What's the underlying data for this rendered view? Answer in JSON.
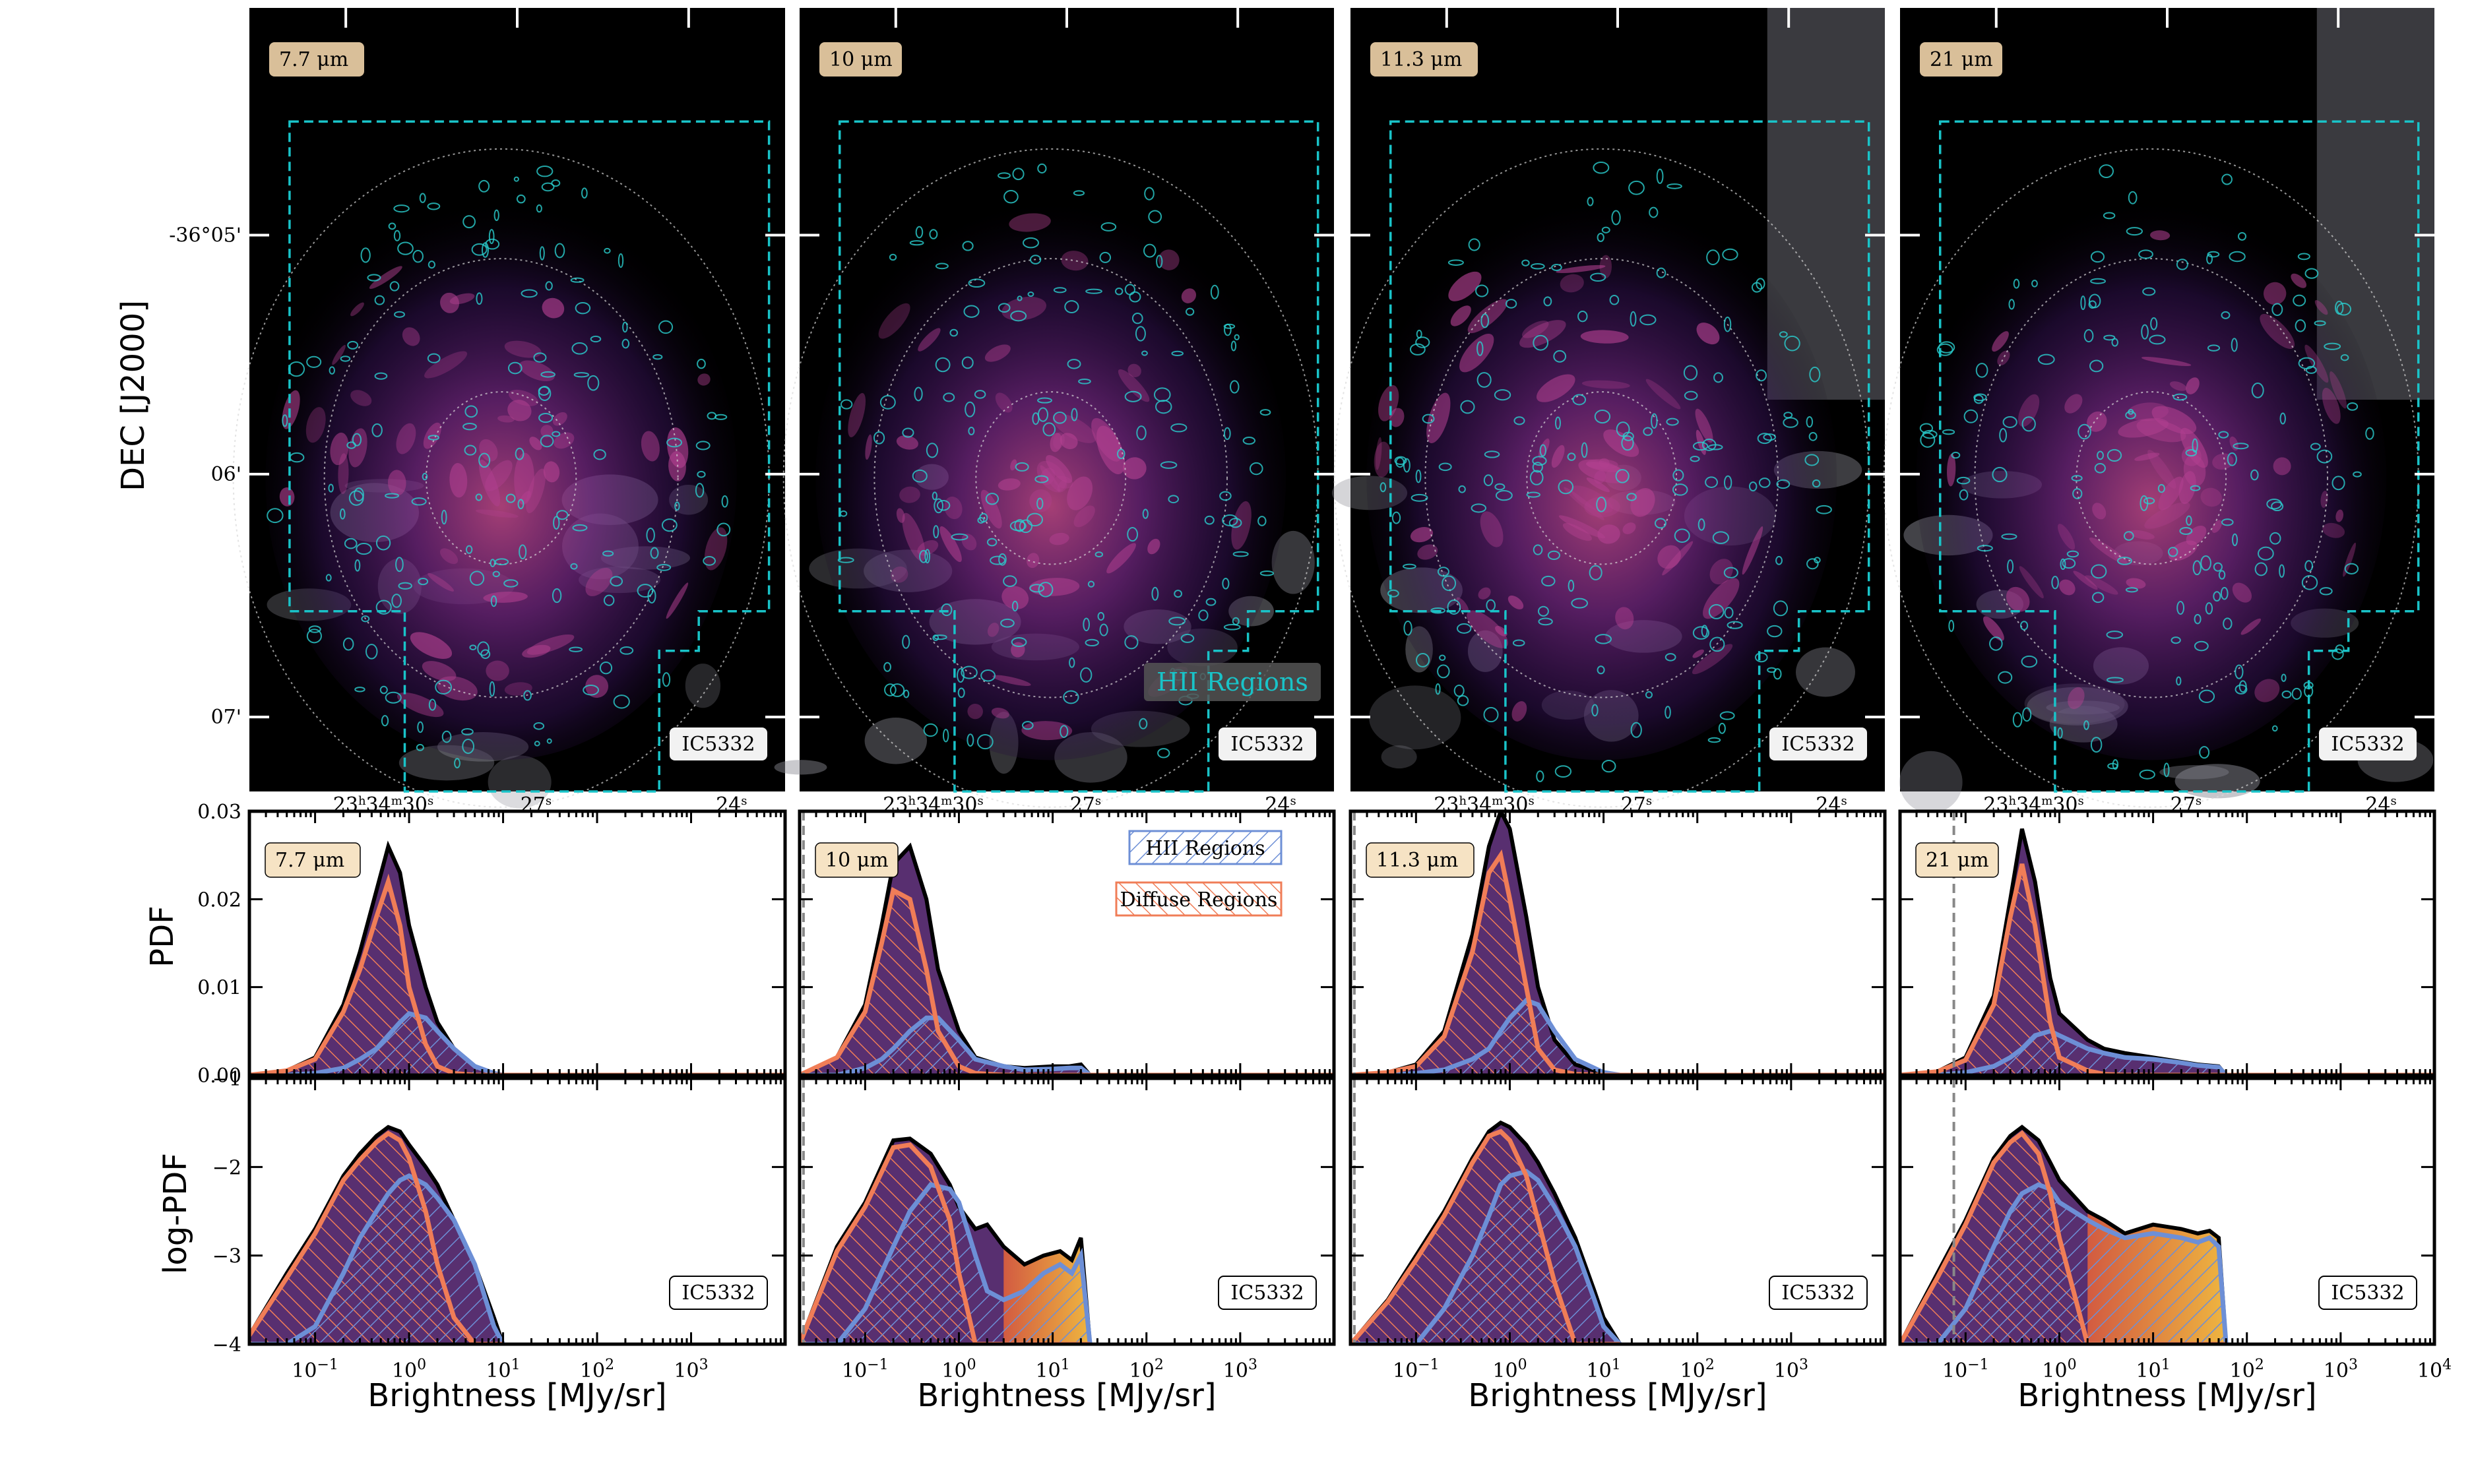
{
  "galaxy_label": "IC5332",
  "colors": {
    "total": "#3b0a57",
    "hii": "#6d8fd6",
    "diffuse": "#f07d57",
    "footprint": "#19c3c8",
    "hii_contour": "#2ad0d0",
    "band_box": "#d9bf99",
    "band_box_light": "#f6e3c4"
  },
  "image_row": {
    "ylabel": "DEC [J2000]",
    "dec_ticks": [
      "-36°05'",
      "06'",
      "07'"
    ],
    "ra_ticks": [
      {
        "h": "23",
        "m": "34",
        "s": "30",
        "unit_h": "h",
        "unit_m": "m",
        "unit_s": "s"
      },
      {
        "s": "27",
        "unit_s": "s"
      },
      {
        "s": "24",
        "unit_s": "s"
      }
    ],
    "hii_label": "HII Regions"
  },
  "legend": {
    "hii": "HII Regions",
    "diffuse": "Diffuse Regions"
  },
  "chart_data": [
    {
      "type": "area",
      "row": "pdf",
      "ylabel": "PDF",
      "xlabel": "",
      "xscale": "log",
      "xlim": [
        0.02,
        10000
      ],
      "ylim": [
        0,
        0.03
      ],
      "yticks": [
        "0.00",
        "0.01",
        "0.02",
        "0.03"
      ],
      "panels": [
        {
          "band": "7.7 μm",
          "band_num": "7.7",
          "band_unit": "μm",
          "x": [
            0.02,
            0.05,
            0.1,
            0.2,
            0.3,
            0.45,
            0.6,
            0.8,
            1.0,
            1.5,
            2,
            3,
            5,
            8,
            10,
            10000
          ],
          "series": [
            {
              "name": "total",
              "values": [
                0,
                0.0005,
                0.002,
                0.008,
                0.014,
                0.021,
                0.026,
                0.023,
                0.017,
                0.01,
                0.006,
                0.003,
                0.001,
                0.0002,
                0,
                0
              ]
            },
            {
              "name": "HII Regions",
              "values": [
                0,
                0,
                0.0002,
                0.0008,
                0.0018,
                0.003,
                0.0045,
                0.006,
                0.007,
                0.0065,
                0.005,
                0.003,
                0.001,
                0.0002,
                0,
                0
              ]
            },
            {
              "name": "Diffuse Regions",
              "values": [
                0,
                0.0005,
                0.0018,
                0.0072,
                0.012,
                0.018,
                0.022,
                0.017,
                0.01,
                0.0035,
                0.001,
                0.0002,
                0,
                0,
                0,
                0
              ]
            }
          ],
          "vline": null
        },
        {
          "band": "10 μm",
          "band_num": "10",
          "band_unit": "μm",
          "x": [
            0.02,
            0.05,
            0.1,
            0.15,
            0.2,
            0.3,
            0.45,
            0.6,
            1.0,
            1.5,
            3,
            5,
            10,
            15,
            20,
            25,
            10000
          ],
          "series": [
            {
              "name": "total",
              "values": [
                0,
                0.002,
                0.008,
                0.017,
                0.024,
                0.026,
                0.02,
                0.012,
                0.005,
                0.002,
                0.001,
                0.0008,
                0.001,
                0.001,
                0.0012,
                0,
                0
              ]
            },
            {
              "name": "HII Regions",
              "values": [
                0,
                0,
                0.0008,
                0.0018,
                0.003,
                0.005,
                0.0065,
                0.0065,
                0.004,
                0.0018,
                0.001,
                0.0006,
                0.0007,
                0.0008,
                0.0008,
                0,
                0
              ]
            },
            {
              "name": "Diffuse Regions",
              "values": [
                0,
                0.002,
                0.0072,
                0.015,
                0.021,
                0.02,
                0.012,
                0.005,
                0.001,
                0.0002,
                0,
                0,
                0,
                0,
                0,
                0,
                0
              ]
            }
          ],
          "vline": 0.022
        },
        {
          "band": "11.3 μm",
          "band_num": "11.3",
          "band_unit": "μm",
          "x": [
            0.02,
            0.05,
            0.1,
            0.2,
            0.4,
            0.6,
            0.8,
            1.0,
            1.5,
            2,
            3,
            5,
            10,
            15,
            10000
          ],
          "series": [
            {
              "name": "total",
              "values": [
                0,
                0.0003,
                0.0012,
                0.005,
                0.016,
                0.026,
                0.03,
                0.028,
                0.018,
                0.01,
                0.004,
                0.0012,
                0.0002,
                0,
                0
              ]
            },
            {
              "name": "HII Regions",
              "values": [
                0,
                0,
                0.0002,
                0.0006,
                0.0018,
                0.003,
                0.005,
                0.0065,
                0.0085,
                0.008,
                0.005,
                0.0018,
                0.0003,
                0,
                0
              ]
            },
            {
              "name": "Diffuse Regions",
              "values": [
                0,
                0.0003,
                0.001,
                0.0044,
                0.014,
                0.023,
                0.025,
                0.02,
                0.01,
                0.003,
                0.0006,
                0.0001,
                0,
                0,
                0
              ]
            }
          ],
          "vline": 0.022
        },
        {
          "band": "21 μm",
          "band_num": "21",
          "band_unit": "μm",
          "x": [
            0.02,
            0.05,
            0.1,
            0.2,
            0.3,
            0.4,
            0.55,
            0.8,
            1.0,
            2,
            3,
            5,
            10,
            20,
            30,
            50,
            60,
            10000
          ],
          "series": [
            {
              "name": "total",
              "values": [
                0,
                0.0004,
                0.002,
                0.009,
                0.02,
                0.028,
                0.022,
                0.011,
                0.007,
                0.004,
                0.003,
                0.0025,
                0.002,
                0.0015,
                0.0012,
                0.001,
                0,
                0
              ]
            },
            {
              "name": "HII Regions",
              "values": [
                0,
                0,
                0.0003,
                0.001,
                0.002,
                0.003,
                0.0045,
                0.005,
                0.0045,
                0.003,
                0.0025,
                0.002,
                0.0018,
                0.0014,
                0.0011,
                0.0009,
                0,
                0
              ]
            },
            {
              "name": "Diffuse Regions",
              "values": [
                0,
                0.0004,
                0.0017,
                0.008,
                0.018,
                0.024,
                0.017,
                0.006,
                0.002,
                0.0005,
                0.0001,
                0,
                0,
                0,
                0,
                0,
                0,
                0
              ]
            }
          ],
          "vline": 0.075
        }
      ]
    },
    {
      "type": "area",
      "row": "logpdf",
      "ylabel": "log-PDF",
      "xlabel": "Brightness [MJy/sr]",
      "xscale": "log",
      "xlim": [
        0.02,
        10000
      ],
      "ylim": [
        -4,
        -1
      ],
      "yticks": [
        "−4",
        "−3",
        "−2",
        "−1"
      ],
      "xticks": [
        {
          "base": "10",
          "exp": "−1",
          "value": 0.1
        },
        {
          "base": "10",
          "exp": "0",
          "value": 1
        },
        {
          "base": "10",
          "exp": "1",
          "value": 10
        },
        {
          "base": "10",
          "exp": "2",
          "value": 100
        },
        {
          "base": "10",
          "exp": "3",
          "value": 1000
        },
        {
          "base": "10",
          "exp": "4",
          "value": 10000
        }
      ],
      "panels": [
        {
          "band": "7.7 μm",
          "x": [
            0.02,
            0.05,
            0.1,
            0.2,
            0.3,
            0.45,
            0.6,
            0.8,
            1.0,
            1.5,
            2,
            3,
            5,
            8,
            10
          ],
          "series": [
            {
              "name": "total",
              "values": [
                -3.9,
                -3.2,
                -2.7,
                -2.1,
                -1.85,
                -1.65,
                -1.55,
                -1.6,
                -1.75,
                -2.0,
                -2.2,
                -2.6,
                -3.1,
                -3.7,
                -4.0
              ]
            },
            {
              "name": "HII Regions",
              "values": [
                -4.0,
                -4.0,
                -3.8,
                -3.2,
                -2.8,
                -2.5,
                -2.3,
                -2.15,
                -2.1,
                -2.2,
                -2.35,
                -2.6,
                -3.1,
                -3.8,
                -4.0
              ]
            },
            {
              "name": "Diffuse Regions",
              "values": [
                -3.9,
                -3.25,
                -2.75,
                -2.15,
                -1.92,
                -1.72,
                -1.62,
                -1.7,
                -1.9,
                -2.5,
                -3.1,
                -3.7,
                -4.0,
                -4.0,
                -4.0
              ]
            }
          ]
        },
        {
          "band": "10 μm",
          "x": [
            0.02,
            0.05,
            0.1,
            0.2,
            0.3,
            0.5,
            0.8,
            1.0,
            1.5,
            2,
            3,
            5,
            8,
            12,
            16,
            20,
            25
          ],
          "series": [
            {
              "name": "total",
              "values": [
                -4.0,
                -2.9,
                -2.4,
                -1.7,
                -1.68,
                -1.85,
                -2.2,
                -2.45,
                -2.7,
                -2.65,
                -2.9,
                -3.1,
                -3.0,
                -2.95,
                -3.05,
                -2.8,
                -4.0
              ]
            },
            {
              "name": "HII Regions",
              "values": [
                -4.0,
                -4.0,
                -3.6,
                -2.9,
                -2.5,
                -2.2,
                -2.25,
                -2.4,
                -3.0,
                -3.4,
                -3.5,
                -3.4,
                -3.2,
                -3.1,
                -3.2,
                -3.0,
                -4.0
              ]
            },
            {
              "name": "Diffuse Regions",
              "values": [
                -4.0,
                -2.95,
                -2.45,
                -1.78,
                -1.75,
                -2.0,
                -2.6,
                -3.2,
                -4.0,
                -4.0,
                -4.0,
                -4.0,
                -4.0,
                -4.0,
                -4.0,
                -4.0,
                -4.0
              ]
            }
          ]
        },
        {
          "band": "11.3 μm",
          "x": [
            0.02,
            0.05,
            0.1,
            0.2,
            0.4,
            0.6,
            0.8,
            1.0,
            1.5,
            2,
            3,
            5,
            8,
            10,
            15
          ],
          "series": [
            {
              "name": "total",
              "values": [
                -4.0,
                -3.5,
                -3.0,
                -2.5,
                -1.9,
                -1.6,
                -1.5,
                -1.55,
                -1.75,
                -1.95,
                -2.3,
                -2.8,
                -3.4,
                -3.7,
                -4.0
              ]
            },
            {
              "name": "HII Regions",
              "values": [
                -4.0,
                -4.0,
                -4.0,
                -3.6,
                -3.0,
                -2.55,
                -2.2,
                -2.1,
                -2.05,
                -2.15,
                -2.45,
                -2.9,
                -3.5,
                -3.8,
                -4.0
              ]
            },
            {
              "name": "Diffuse Regions",
              "values": [
                -4.0,
                -3.52,
                -3.05,
                -2.55,
                -1.95,
                -1.65,
                -1.6,
                -1.7,
                -2.1,
                -2.6,
                -3.3,
                -4.0,
                -4.0,
                -4.0,
                -4.0
              ]
            }
          ]
        },
        {
          "band": "21 μm",
          "x": [
            0.02,
            0.05,
            0.1,
            0.2,
            0.3,
            0.4,
            0.6,
            0.8,
            1.0,
            2,
            3,
            5,
            10,
            20,
            30,
            40,
            50,
            60
          ],
          "series": [
            {
              "name": "total",
              "values": [
                -4.0,
                -3.2,
                -2.6,
                -1.9,
                -1.65,
                -1.55,
                -1.7,
                -1.95,
                -2.15,
                -2.5,
                -2.6,
                -2.75,
                -2.65,
                -2.7,
                -2.75,
                -2.72,
                -2.8,
                -4.0
              ]
            },
            {
              "name": "HII Regions",
              "values": [
                -4.0,
                -4.0,
                -3.6,
                -2.9,
                -2.5,
                -2.3,
                -2.2,
                -2.25,
                -2.4,
                -2.6,
                -2.7,
                -2.8,
                -2.75,
                -2.8,
                -2.85,
                -2.8,
                -2.9,
                -4.0
              ]
            },
            {
              "name": "Diffuse Regions",
              "values": [
                -4.0,
                -3.25,
                -2.65,
                -1.95,
                -1.72,
                -1.62,
                -1.85,
                -2.3,
                -2.8,
                -4.0,
                -4.0,
                -4.0,
                -4.0,
                -4.0,
                -4.0,
                -4.0,
                -4.0,
                -4.0
              ]
            }
          ]
        }
      ]
    }
  ]
}
